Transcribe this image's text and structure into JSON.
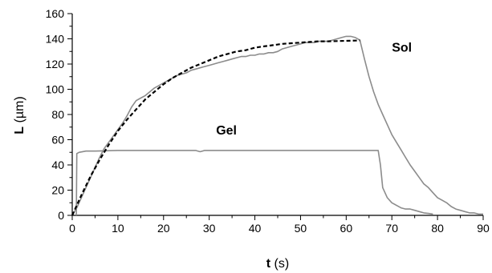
{
  "chart_data": {
    "type": "line",
    "title": "",
    "xlabel": {
      "symbol": "t",
      "unit": " (s)"
    },
    "ylabel": {
      "symbol": "L",
      "unit": " (µm)"
    },
    "xlim": [
      0,
      90
    ],
    "ylim": [
      0,
      160
    ],
    "xticks": [
      0,
      10,
      20,
      30,
      40,
      50,
      60,
      70,
      80,
      90
    ],
    "yticks": [
      0,
      20,
      40,
      60,
      80,
      100,
      120,
      140,
      160
    ],
    "grid": false,
    "legend": "none",
    "series": [
      {
        "style": "solid",
        "color": "#8c8c8c",
        "x": [
          0,
          1,
          2,
          3,
          4,
          5,
          6,
          7,
          8,
          9,
          10,
          11,
          12,
          13,
          14,
          15,
          16,
          17,
          18,
          19,
          20,
          21,
          22,
          23,
          24,
          25,
          26,
          27,
          28,
          29,
          30,
          31,
          32,
          33,
          34,
          35,
          36,
          37,
          38,
          39,
          40,
          41,
          42,
          43,
          44,
          45,
          46,
          47,
          48,
          49,
          50,
          51,
          52,
          53,
          54,
          55,
          56,
          57,
          58,
          59,
          60,
          61,
          62,
          63,
          64,
          65,
          66,
          67,
          68,
          69,
          70,
          71,
          72,
          73,
          74,
          75,
          76,
          77,
          78,
          79,
          80,
          81,
          82,
          83,
          84,
          85,
          86,
          87,
          88,
          89,
          90
        ],
        "y": [
          0,
          6,
          14,
          22,
          30,
          38,
          46,
          53,
          58,
          63,
          68,
          73,
          79,
          86,
          91,
          93,
          95,
          98,
          101,
          103,
          105,
          107,
          109,
          111,
          112,
          113,
          115,
          116,
          117,
          118,
          119,
          120,
          121,
          122,
          123,
          124,
          125,
          126,
          126,
          127,
          127,
          128,
          128,
          129,
          129,
          130,
          132,
          133,
          134,
          135,
          136,
          137,
          137,
          137,
          138,
          138,
          138,
          139,
          140,
          141,
          142,
          142,
          141,
          139,
          124,
          110,
          98,
          88,
          80,
          72,
          64,
          58,
          52,
          46,
          40,
          35,
          30,
          25,
          22,
          18,
          14,
          12,
          10,
          7,
          5,
          4,
          3,
          2,
          2,
          1,
          1
        ]
      },
      {
        "style": "solid",
        "color": "#8c8c8c",
        "x": [
          0.9,
          1.0,
          1.5,
          3,
          5,
          10,
          15,
          20,
          25,
          27,
          28,
          29,
          30,
          35,
          40,
          45,
          50,
          55,
          60,
          65,
          66.5,
          67,
          67.5,
          68,
          69,
          70,
          71,
          72,
          73,
          74,
          75,
          76,
          77,
          78,
          79
        ],
        "y": [
          0,
          49,
          50,
          51,
          51,
          51.5,
          51.5,
          51.5,
          51.5,
          51.5,
          50.5,
          51.5,
          51.5,
          51.5,
          51.5,
          51.5,
          51.5,
          51.5,
          51.5,
          51.5,
          51.5,
          51.5,
          40,
          22,
          14,
          10,
          8,
          6,
          5,
          5,
          4,
          3,
          2,
          1.5,
          1
        ]
      },
      {
        "style": "dashed",
        "color": "#000000",
        "x": [
          0,
          2,
          4,
          6,
          8,
          10,
          12,
          14,
          16,
          18,
          20,
          22,
          24,
          26,
          28,
          30,
          32,
          34,
          36,
          38,
          40,
          42,
          44,
          46,
          48,
          50,
          52,
          54,
          56,
          58,
          60,
          62,
          63
        ],
        "y": [
          0,
          16,
          31,
          44,
          56,
          67,
          76,
          84,
          92,
          98,
          104,
          109,
          113,
          117,
          120,
          123,
          126,
          128,
          130,
          131,
          133,
          134,
          135,
          136,
          136.5,
          137,
          137.5,
          138,
          138,
          138.2,
          138.4,
          138.6,
          138.7
        ]
      }
    ],
    "annotations": [
      {
        "text": "Sol",
        "x": 70,
        "y": 130
      },
      {
        "text": "Gel",
        "x": 31.5,
        "y": 64
      }
    ]
  }
}
